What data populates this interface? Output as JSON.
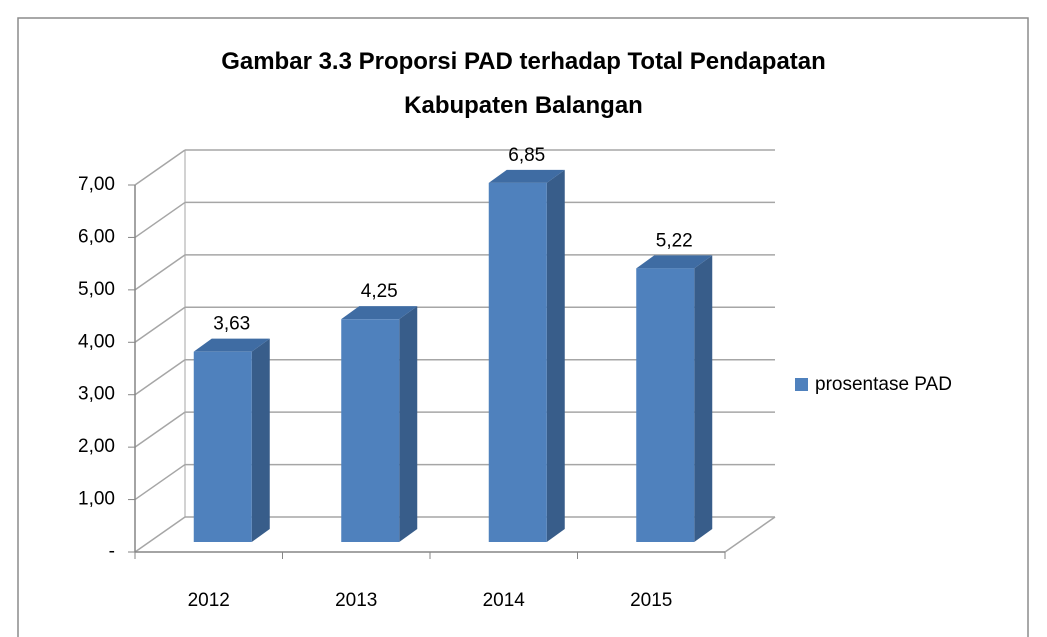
{
  "chart_data": {
    "type": "bar3d",
    "title": "Gambar 3.3 Proporsi PAD terhadap Total Pendapatan\nKabupaten Balangan",
    "categories": [
      "2012",
      "2013",
      "2014",
      "2015"
    ],
    "series": [
      {
        "name": "prosentase PAD",
        "color": "#4f81bd",
        "values": [
          3.63,
          4.25,
          6.85,
          5.22
        ],
        "value_labels": [
          "3,63",
          "4,25",
          "6,85",
          "5,22"
        ]
      }
    ],
    "ylim": [
      0,
      7
    ],
    "yticks": [
      {
        "value": 0,
        "label": "-"
      },
      {
        "value": 1,
        "label": "1,00"
      },
      {
        "value": 2,
        "label": "2,00"
      },
      {
        "value": 3,
        "label": "3,00"
      },
      {
        "value": 4,
        "label": "4,00"
      },
      {
        "value": 5,
        "label": "5,00"
      },
      {
        "value": 6,
        "label": "6,00"
      },
      {
        "value": 7,
        "label": "7,00"
      }
    ],
    "grid": true,
    "legend": "right"
  }
}
